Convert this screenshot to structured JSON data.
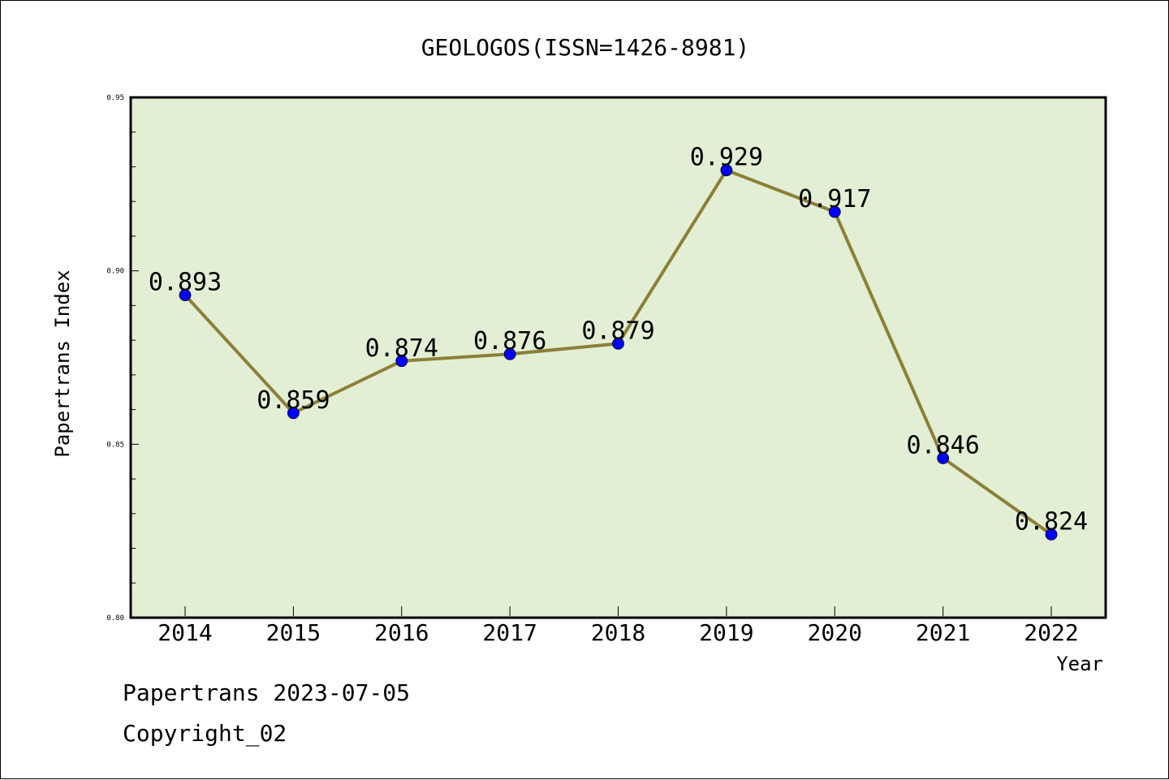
{
  "chart_data": {
    "type": "line",
    "title": "GEOLOGOS(ISSN=1426-8981)",
    "xlabel": "Year",
    "ylabel": "Papertrans Index",
    "categories": [
      "2014",
      "2015",
      "2016",
      "2017",
      "2018",
      "2019",
      "2020",
      "2021",
      "2022"
    ],
    "series": [
      {
        "values": [
          0.893,
          0.859,
          0.874,
          0.876,
          0.879,
          0.929,
          0.917,
          0.846,
          0.824
        ],
        "labels": [
          "0.893",
          "0.859",
          "0.874",
          "0.876",
          "0.879",
          "0.929",
          "0.917",
          "0.846",
          "0.824"
        ]
      }
    ],
    "ylim": [
      0.8,
      0.95
    ],
    "yticks": [
      "0.80",
      "0.85",
      "0.90",
      "0.95"
    ],
    "grid": false,
    "colors": {
      "plot_background": "#e2efd4",
      "line": "#8c7f38",
      "marker": "#0000ff"
    }
  },
  "footer": {
    "line1": "Papertrans 2023-07-05",
    "line2": "Copyright_02"
  }
}
